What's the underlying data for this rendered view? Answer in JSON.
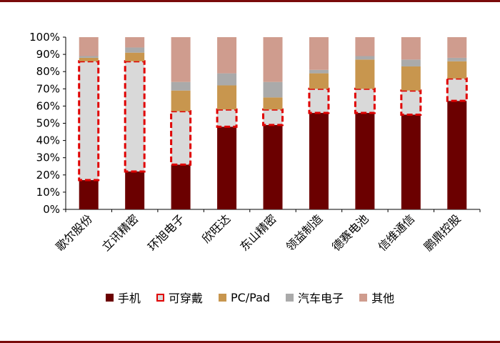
{
  "chart_data": {
    "type": "bar",
    "stacked": true,
    "categories": [
      "歌尔股份",
      "立讯精密",
      "环旭电子",
      "欣旺达",
      "东山精密",
      "领益制造",
      "德赛电池",
      "信维通信",
      "鹏鼎控股"
    ],
    "series": [
      {
        "name": "手机",
        "color": "#6b0000",
        "values": [
          17,
          22,
          26,
          48,
          49,
          56,
          56,
          55,
          63
        ]
      },
      {
        "name": "可穿戴",
        "color": "#d9d9d9",
        "outline": "#e00000",
        "values": [
          69,
          64,
          31,
          10,
          9,
          14,
          14,
          14,
          13
        ]
      },
      {
        "name": "PC/Pad",
        "color": "#c8964e",
        "values": [
          2,
          5,
          12,
          14,
          7,
          9,
          17,
          14,
          10
        ]
      },
      {
        "name": "汽车电子",
        "color": "#aaaaaa",
        "values": [
          1,
          3,
          5,
          7,
          9,
          2,
          2,
          4,
          2
        ]
      },
      {
        "name": "其他",
        "color": "#cf9c8e",
        "values": [
          11,
          6,
          26,
          21,
          26,
          19,
          11,
          13,
          12
        ]
      }
    ],
    "yticks": [
      "0%",
      "10%",
      "20%",
      "30%",
      "40%",
      "50%",
      "60%",
      "70%",
      "80%",
      "90%",
      "100%"
    ],
    "ylim": [
      0,
      100
    ],
    "legend_position": "bottom"
  }
}
